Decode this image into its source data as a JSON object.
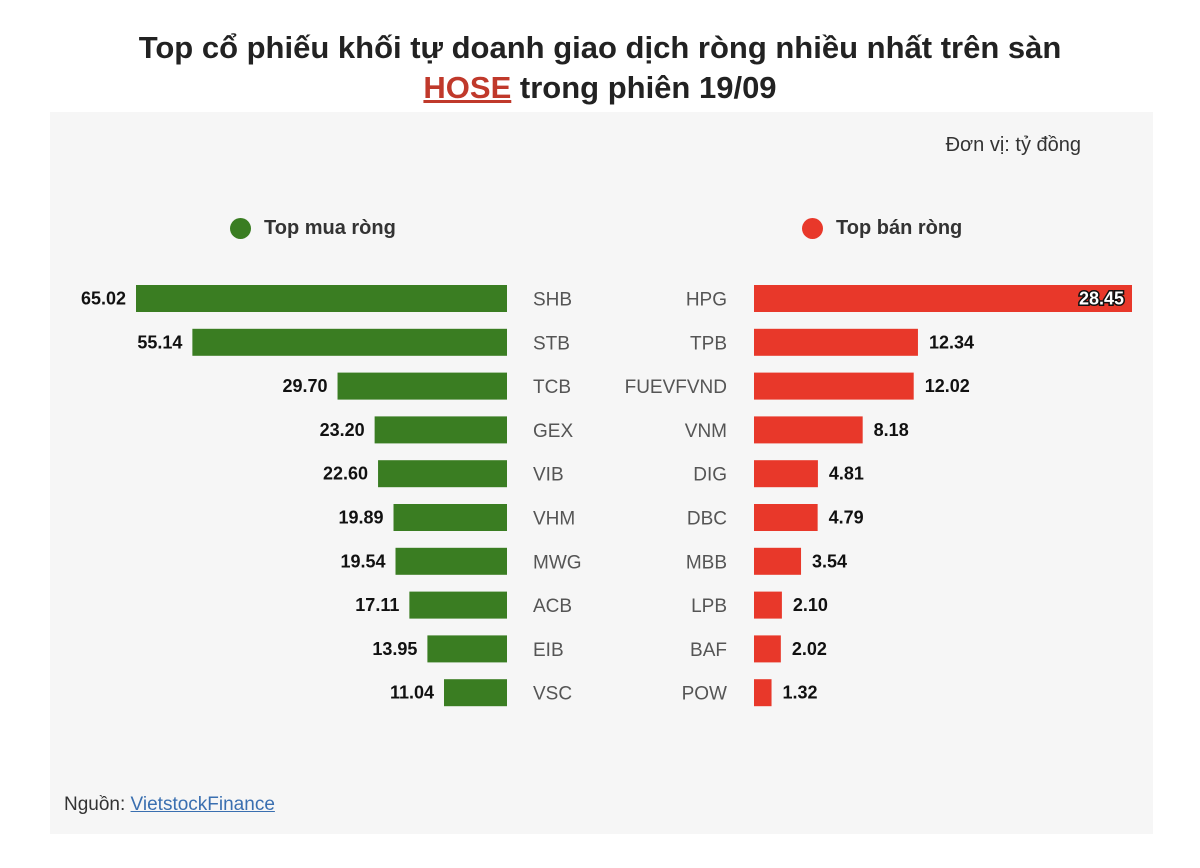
{
  "title_line1": "Top cổ phiếu khối tự doanh giao dịch ròng nhiều nhất trên sàn",
  "title_highlight": "HOSE",
  "title_line2_rest": " trong phiên 19/09",
  "unit": "Đơn vị: tỷ đồng",
  "source_label": "Nguồn: ",
  "source_link": "VietstockFinance",
  "colors": {
    "buy": "#3a7d22",
    "sell": "#e8382a",
    "highlight": "#c0392b"
  },
  "chart_data": [
    {
      "type": "bar",
      "title": "Top mua ròng",
      "categories": [
        "SHB",
        "STB",
        "TCB",
        "GEX",
        "VIB",
        "VHM",
        "MWG",
        "ACB",
        "EIB",
        "VSC"
      ],
      "values": [
        65.02,
        55.14,
        29.7,
        23.2,
        22.6,
        19.89,
        19.54,
        17.11,
        13.95,
        11.04
      ],
      "labels": [
        "65.02",
        "55.14",
        "29.70",
        "23.20",
        "22.60",
        "19.89",
        "19.54",
        "17.11",
        "13.95",
        "11.04"
      ]
    },
    {
      "type": "bar",
      "title": "Top bán ròng",
      "categories": [
        "HPG",
        "TPB",
        "FUEVFVND",
        "VNM",
        "DIG",
        "DBC",
        "MBB",
        "LPB",
        "BAF",
        "POW"
      ],
      "values": [
        28.45,
        12.34,
        12.02,
        8.18,
        4.81,
        4.79,
        3.54,
        2.1,
        2.02,
        1.32
      ],
      "labels": [
        "28.45",
        "12.34",
        "12.02",
        "8.18",
        "4.81",
        "4.79",
        "3.54",
        "2.10",
        "2.02",
        "1.32"
      ]
    }
  ]
}
